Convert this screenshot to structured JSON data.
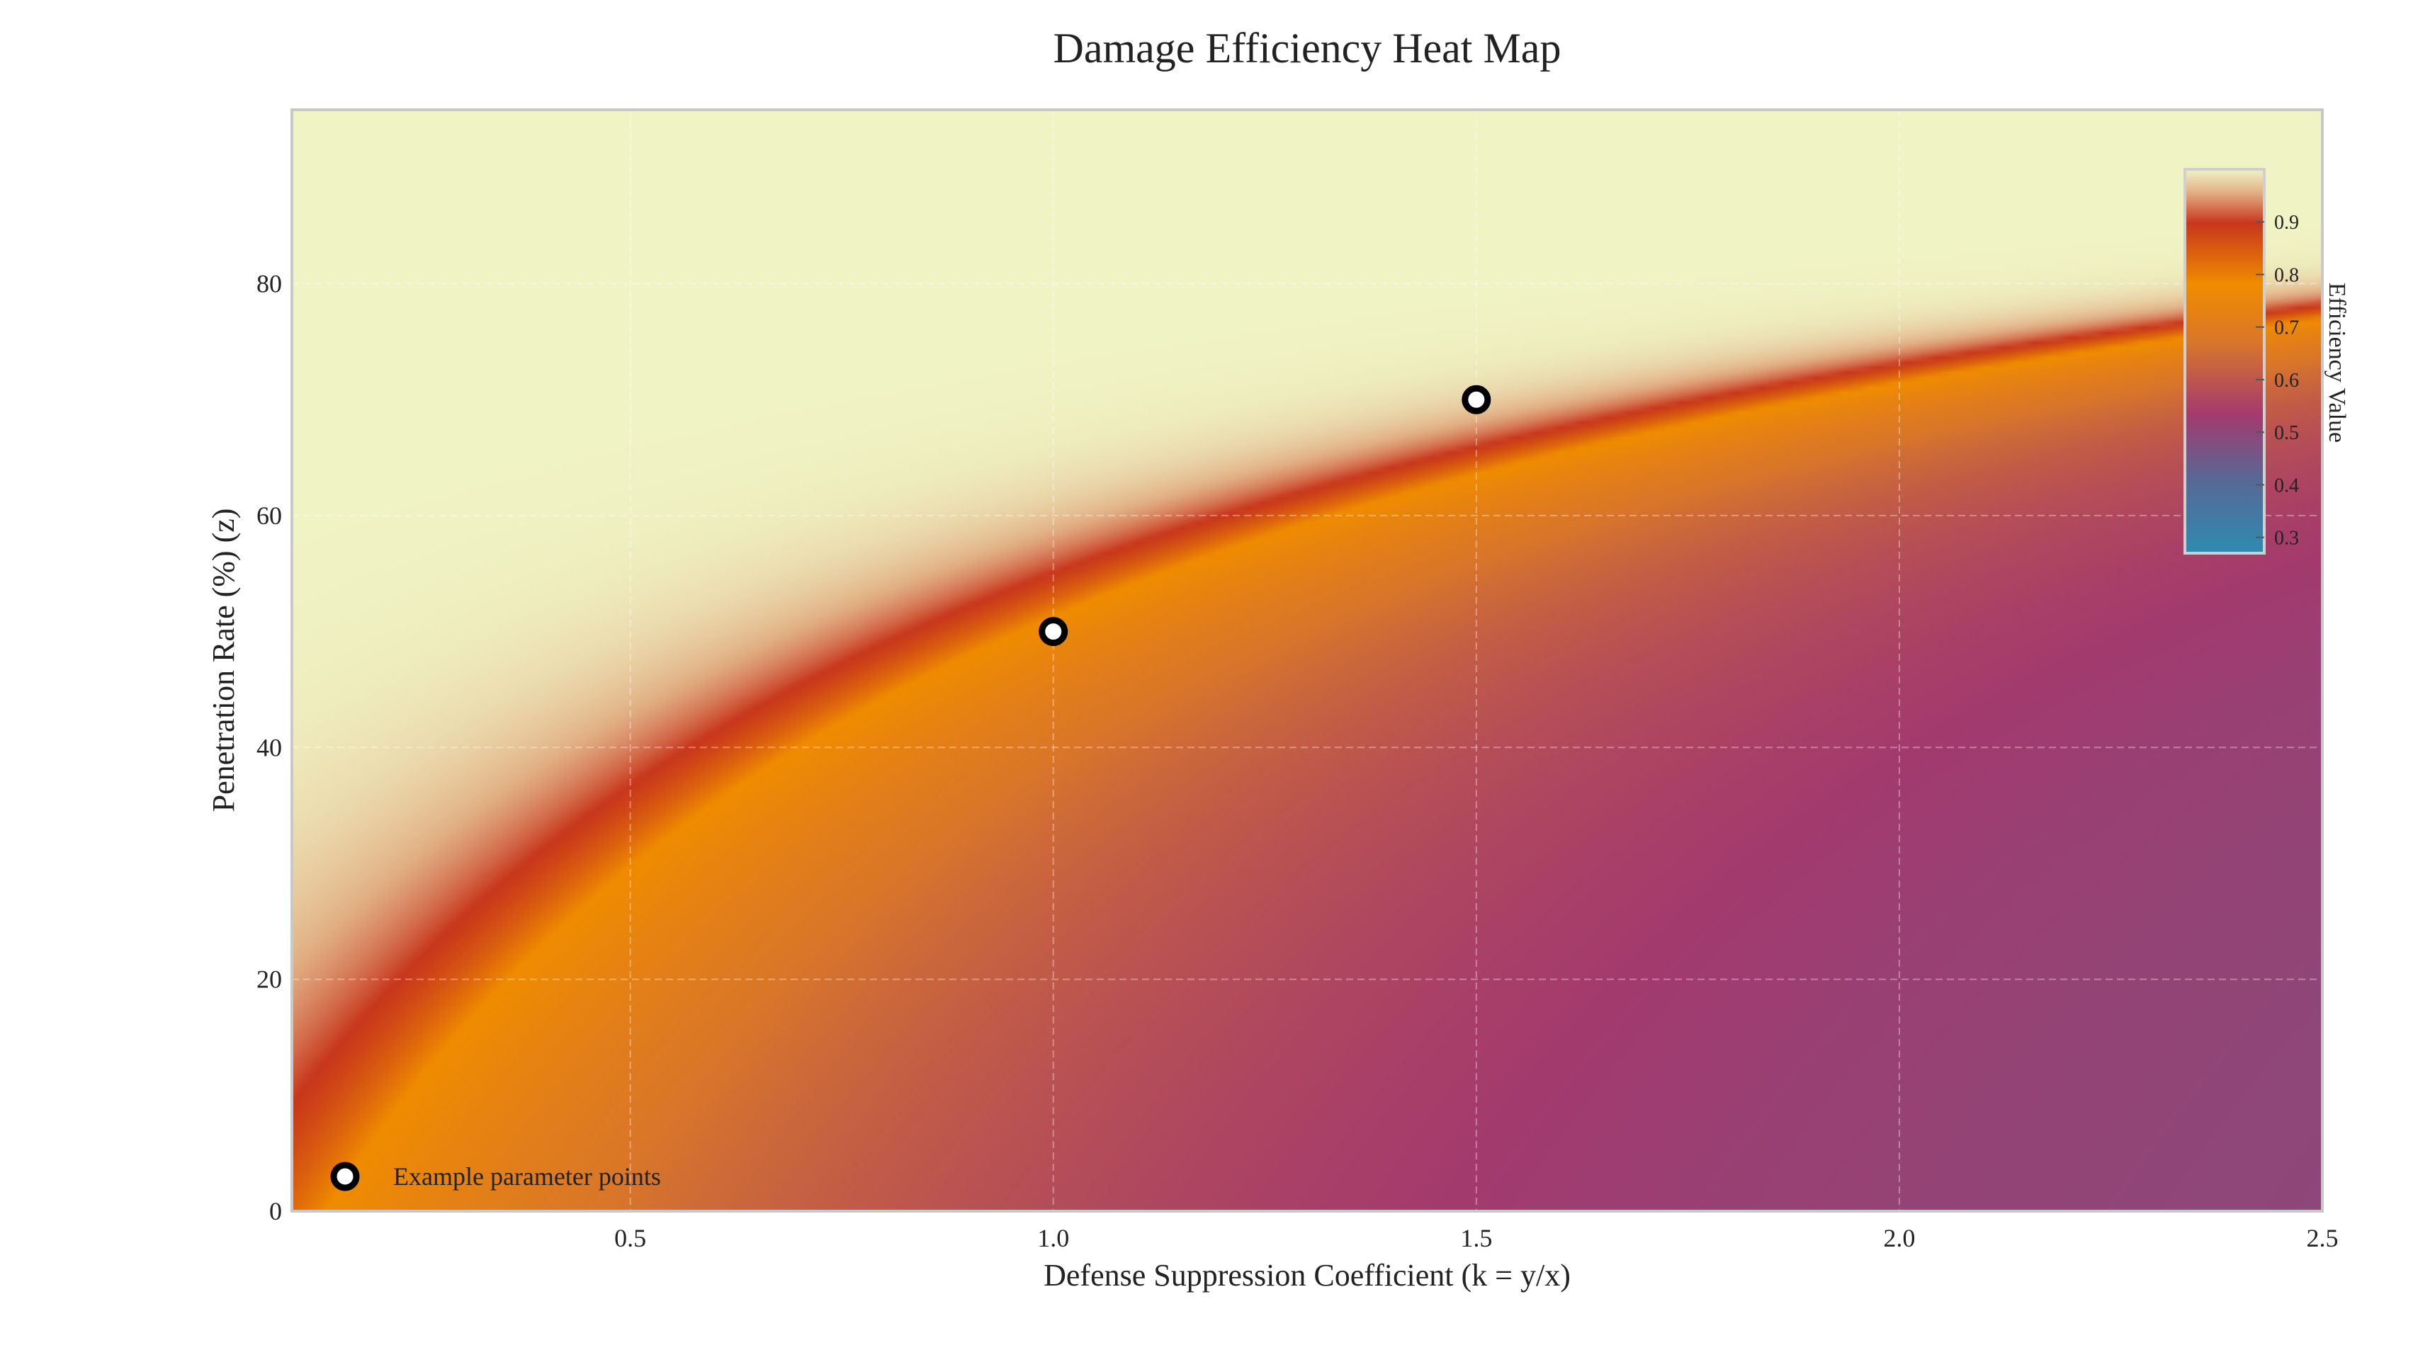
{
  "chart_data": {
    "type": "heatmap",
    "title": "Damage Efficiency Heat Map",
    "xlabel": "Defense Suppression Coefficient (k = y/x)",
    "ylabel": "Penetration Rate (%) (z)",
    "xlim": [
      0.1,
      2.5
    ],
    "ylim": [
      0,
      95
    ],
    "x_ticks": [
      "0.5",
      "1.0",
      "1.5",
      "2.0",
      "2.5"
    ],
    "x_tick_values": [
      0.5,
      1.0,
      1.5,
      2.0,
      2.5
    ],
    "y_ticks": [
      "0",
      "20",
      "40",
      "60",
      "80"
    ],
    "y_tick_values": [
      0,
      20,
      40,
      60,
      80
    ],
    "grid": true,
    "colorbar": {
      "label": "Efficiency Value",
      "range": [
        0.27,
        1.0
      ],
      "ticks": [
        "0.3",
        "0.4",
        "0.5",
        "0.6",
        "0.7",
        "0.8",
        "0.9"
      ],
      "tick_values": [
        0.3,
        0.4,
        0.5,
        0.6,
        0.7,
        0.8,
        0.9
      ],
      "placement": "top-right inside plot"
    },
    "colormap": [
      {
        "v": 0.0,
        "color": "#2e8bb0"
      },
      {
        "v": 0.2,
        "color": "#5a6694"
      },
      {
        "v": 0.36,
        "color": "#a33a6e"
      },
      {
        "v": 0.55,
        "color": "#d9762a"
      },
      {
        "v": 0.7,
        "color": "#f08c00"
      },
      {
        "v": 0.86,
        "color": "#c8361c"
      },
      {
        "v": 0.94,
        "color": "#e2b085"
      },
      {
        "v": 1.0,
        "color": "#f0f3c4"
      }
    ],
    "points": {
      "name": "Example parameter points",
      "x": [
        1.0,
        1.5
      ],
      "y": [
        50,
        70
      ]
    },
    "legend": {
      "placement": "bottom-left",
      "label": "Example parameter points"
    }
  }
}
